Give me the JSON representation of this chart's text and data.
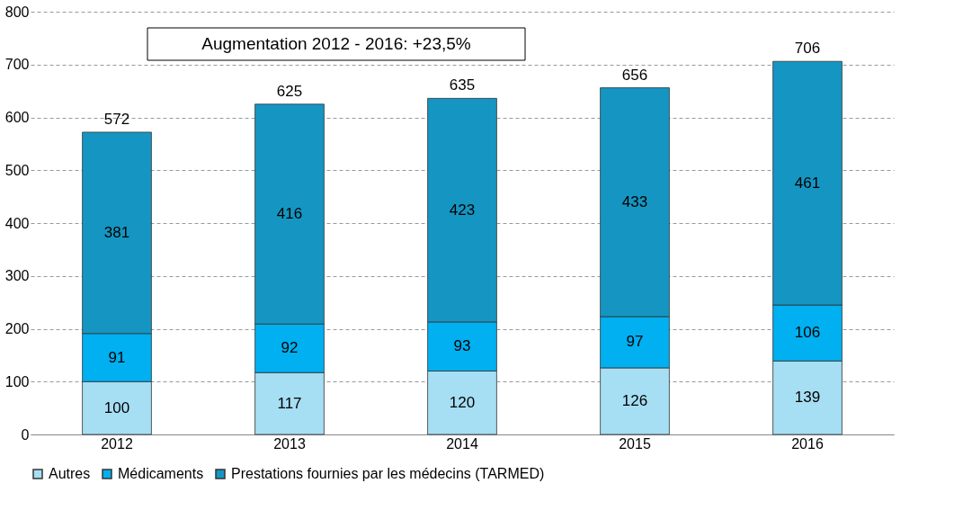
{
  "chart_data": {
    "type": "bar",
    "stacked": true,
    "categories": [
      "2012",
      "2013",
      "2014",
      "2015",
      "2016"
    ],
    "series": [
      {
        "name": "Autres",
        "color": "#a6def4",
        "values": [
          100,
          117,
          120,
          126,
          139
        ]
      },
      {
        "name": "Médicaments",
        "color": "#00b0f0",
        "values": [
          91,
          92,
          93,
          97,
          106
        ]
      },
      {
        "name": "Prestations fournies par les médecins (TARMED)",
        "color": "#1596c2",
        "values": [
          381,
          416,
          423,
          433,
          461
        ]
      }
    ],
    "totals": [
      "572",
      "625",
      "635",
      "656",
      "706"
    ],
    "annotations": [
      "Augmentation 2012 - 2016: +23,5%"
    ],
    "ylim": [
      0,
      800
    ],
    "yticks": [
      0,
      100,
      200,
      300,
      400,
      500,
      600,
      700,
      800
    ],
    "grid": "y",
    "legend": "bottom",
    "data_labels": true
  }
}
